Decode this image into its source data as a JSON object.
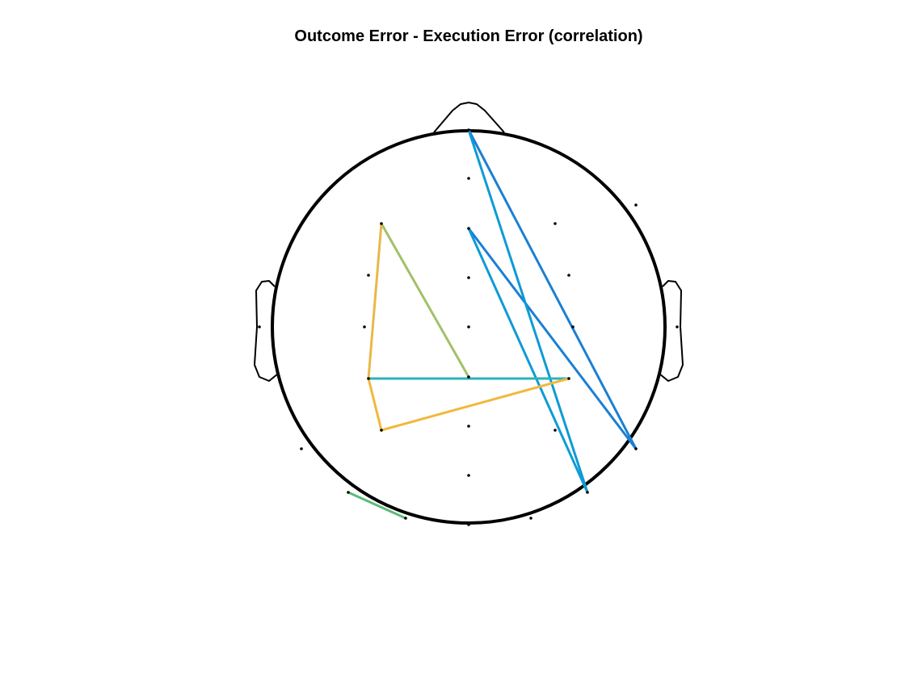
{
  "title": "Outcome Error - Execution Error (correlation)",
  "colors": {
    "head_outline": "#000000",
    "electrode": "#000000",
    "background": "#ffffff"
  },
  "connections": [
    {
      "from": "Fz",
      "to": "P10",
      "color": "#1B7FD3"
    },
    {
      "from": "Fpz",
      "to": "P10",
      "color": "#1B7FD3"
    },
    {
      "from": "Fz",
      "to": "P8",
      "color": "#0F9AD6"
    },
    {
      "from": "Fpz",
      "to": "P8",
      "color": "#0F9AD6"
    },
    {
      "from": "CP3",
      "to": "CP4",
      "color": "#2EB1BC"
    },
    {
      "from": "F3",
      "to": "CPz",
      "color": "#A2C168"
    },
    {
      "from": "F3",
      "to": "CP3",
      "color": "#E8B84A"
    },
    {
      "from": "CP3",
      "to": "P3",
      "color": "#F2B83C"
    },
    {
      "from": "P3",
      "to": "CP4",
      "color": "#F2B83C"
    },
    {
      "from": "PO9",
      "to": "O1",
      "color": "#5DBB78"
    }
  ]
}
